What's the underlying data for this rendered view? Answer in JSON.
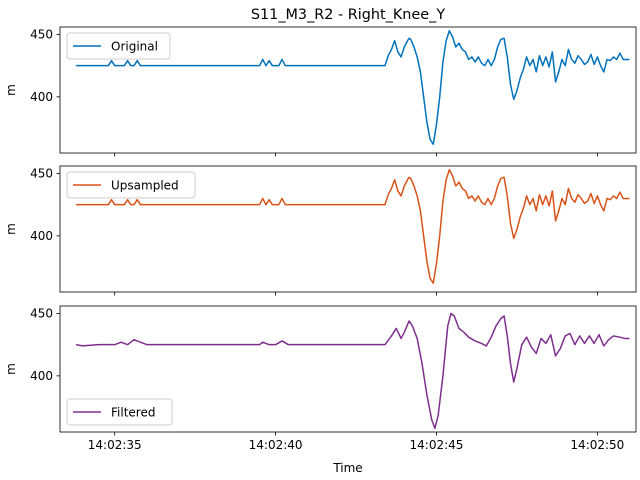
{
  "chart_data": {
    "type": "line",
    "title": "S11_M3_R2 - Right_Knee_Y",
    "xlabel": "Time",
    "x_ticks": [
      "14:02:35",
      "14:02:40",
      "14:02:45",
      "14:02:50"
    ],
    "x_range_seconds": [
      33.3,
      51.2
    ],
    "x_tick_seconds": [
      35,
      40,
      45,
      50
    ],
    "shared_x": true,
    "grid": false,
    "panels": [
      {
        "name": "Original",
        "color": "#0072BD",
        "ylabel": "m",
        "ylim": [
          355,
          456
        ],
        "y_ticks": [
          400,
          450
        ],
        "legend_position": "upper-left",
        "kind": "step",
        "values": [
          [
            33.8,
            425
          ],
          [
            34.8,
            425
          ],
          [
            34.9,
            429
          ],
          [
            35.0,
            425
          ],
          [
            35.3,
            425
          ],
          [
            35.4,
            429
          ],
          [
            35.5,
            425
          ],
          [
            35.6,
            425
          ],
          [
            35.7,
            429
          ],
          [
            35.8,
            425
          ],
          [
            39.5,
            425
          ],
          [
            39.6,
            430
          ],
          [
            39.7,
            425
          ],
          [
            39.8,
            429
          ],
          [
            39.9,
            425
          ],
          [
            40.1,
            425
          ],
          [
            40.2,
            430
          ],
          [
            40.3,
            425
          ],
          [
            43.4,
            425
          ],
          [
            43.5,
            433
          ],
          [
            43.6,
            438
          ],
          [
            43.7,
            445
          ],
          [
            43.8,
            436
          ],
          [
            43.9,
            432
          ],
          [
            44.0,
            440
          ],
          [
            44.1,
            445
          ],
          [
            44.15,
            447
          ],
          [
            44.2,
            446
          ],
          [
            44.3,
            440
          ],
          [
            44.4,
            432
          ],
          [
            44.5,
            420
          ],
          [
            44.6,
            400
          ],
          [
            44.7,
            380
          ],
          [
            44.8,
            366
          ],
          [
            44.9,
            362
          ],
          [
            45.0,
            378
          ],
          [
            45.1,
            400
          ],
          [
            45.2,
            428
          ],
          [
            45.3,
            445
          ],
          [
            45.4,
            453
          ],
          [
            45.5,
            448
          ],
          [
            45.6,
            440
          ],
          [
            45.7,
            443
          ],
          [
            45.8,
            438
          ],
          [
            45.9,
            436
          ],
          [
            46.0,
            430
          ],
          [
            46.1,
            432
          ],
          [
            46.2,
            428
          ],
          [
            46.3,
            432
          ],
          [
            46.4,
            427
          ],
          [
            46.5,
            425
          ],
          [
            46.6,
            430
          ],
          [
            46.7,
            425
          ],
          [
            46.8,
            430
          ],
          [
            46.9,
            440
          ],
          [
            47.0,
            446
          ],
          [
            47.1,
            447
          ],
          [
            47.2,
            432
          ],
          [
            47.3,
            410
          ],
          [
            47.4,
            398
          ],
          [
            47.5,
            405
          ],
          [
            47.6,
            415
          ],
          [
            47.7,
            422
          ],
          [
            47.8,
            432
          ],
          [
            47.9,
            425
          ],
          [
            48.0,
            430
          ],
          [
            48.1,
            420
          ],
          [
            48.2,
            433
          ],
          [
            48.3,
            425
          ],
          [
            48.4,
            432
          ],
          [
            48.5,
            424
          ],
          [
            48.6,
            436
          ],
          [
            48.7,
            412
          ],
          [
            48.8,
            420
          ],
          [
            48.9,
            430
          ],
          [
            49.0,
            425
          ],
          [
            49.1,
            438
          ],
          [
            49.2,
            430
          ],
          [
            49.3,
            427
          ],
          [
            49.4,
            433
          ],
          [
            49.5,
            430
          ],
          [
            49.6,
            426
          ],
          [
            49.7,
            428
          ],
          [
            49.8,
            434
          ],
          [
            49.9,
            426
          ],
          [
            50.0,
            432
          ],
          [
            50.1,
            425
          ],
          [
            50.2,
            420
          ],
          [
            50.3,
            430
          ],
          [
            50.4,
            429
          ],
          [
            50.5,
            432
          ],
          [
            50.6,
            430
          ],
          [
            50.7,
            435
          ],
          [
            50.8,
            430
          ],
          [
            51.0,
            430
          ]
        ]
      },
      {
        "name": "Upsampled",
        "color": "#D95319",
        "ylabel": "m",
        "ylim": [
          355,
          456
        ],
        "y_ticks": [
          400,
          450
        ],
        "legend_position": "upper-left",
        "kind": "step",
        "values": [
          [
            33.8,
            425
          ],
          [
            34.8,
            425
          ],
          [
            34.9,
            429
          ],
          [
            35.0,
            425
          ],
          [
            35.3,
            425
          ],
          [
            35.4,
            429
          ],
          [
            35.5,
            425
          ],
          [
            35.6,
            425
          ],
          [
            35.7,
            429
          ],
          [
            35.8,
            425
          ],
          [
            39.5,
            425
          ],
          [
            39.6,
            430
          ],
          [
            39.7,
            425
          ],
          [
            39.8,
            429
          ],
          [
            39.9,
            425
          ],
          [
            40.1,
            425
          ],
          [
            40.2,
            430
          ],
          [
            40.3,
            425
          ],
          [
            43.4,
            425
          ],
          [
            43.5,
            433
          ],
          [
            43.6,
            438
          ],
          [
            43.7,
            445
          ],
          [
            43.8,
            436
          ],
          [
            43.9,
            432
          ],
          [
            44.0,
            440
          ],
          [
            44.1,
            445
          ],
          [
            44.15,
            447
          ],
          [
            44.2,
            446
          ],
          [
            44.3,
            440
          ],
          [
            44.4,
            432
          ],
          [
            44.5,
            420
          ],
          [
            44.6,
            400
          ],
          [
            44.7,
            380
          ],
          [
            44.8,
            366
          ],
          [
            44.9,
            362
          ],
          [
            45.0,
            378
          ],
          [
            45.1,
            400
          ],
          [
            45.2,
            428
          ],
          [
            45.3,
            445
          ],
          [
            45.4,
            453
          ],
          [
            45.5,
            448
          ],
          [
            45.6,
            440
          ],
          [
            45.7,
            443
          ],
          [
            45.8,
            438
          ],
          [
            45.9,
            436
          ],
          [
            46.0,
            430
          ],
          [
            46.1,
            432
          ],
          [
            46.2,
            428
          ],
          [
            46.3,
            432
          ],
          [
            46.4,
            427
          ],
          [
            46.5,
            425
          ],
          [
            46.6,
            430
          ],
          [
            46.7,
            425
          ],
          [
            46.8,
            430
          ],
          [
            46.9,
            440
          ],
          [
            47.0,
            446
          ],
          [
            47.1,
            447
          ],
          [
            47.2,
            432
          ],
          [
            47.3,
            410
          ],
          [
            47.4,
            398
          ],
          [
            47.5,
            405
          ],
          [
            47.6,
            415
          ],
          [
            47.7,
            422
          ],
          [
            47.8,
            432
          ],
          [
            47.9,
            425
          ],
          [
            48.0,
            430
          ],
          [
            48.1,
            420
          ],
          [
            48.2,
            433
          ],
          [
            48.3,
            425
          ],
          [
            48.4,
            432
          ],
          [
            48.5,
            424
          ],
          [
            48.6,
            436
          ],
          [
            48.7,
            412
          ],
          [
            48.8,
            420
          ],
          [
            48.9,
            430
          ],
          [
            49.0,
            425
          ],
          [
            49.1,
            438
          ],
          [
            49.2,
            430
          ],
          [
            49.3,
            427
          ],
          [
            49.4,
            433
          ],
          [
            49.5,
            430
          ],
          [
            49.6,
            426
          ],
          [
            49.7,
            428
          ],
          [
            49.8,
            434
          ],
          [
            49.9,
            426
          ],
          [
            50.0,
            432
          ],
          [
            50.1,
            425
          ],
          [
            50.2,
            420
          ],
          [
            50.3,
            430
          ],
          [
            50.4,
            429
          ],
          [
            50.5,
            432
          ],
          [
            50.6,
            430
          ],
          [
            50.7,
            435
          ],
          [
            50.8,
            430
          ],
          [
            51.0,
            430
          ]
        ]
      },
      {
        "name": "Filtered",
        "color": "#7E2F8E",
        "ylabel": "m",
        "ylim": [
          355,
          456
        ],
        "y_ticks": [
          400,
          450
        ],
        "legend_position": "lower-left",
        "kind": "smooth",
        "values": [
          [
            33.8,
            425
          ],
          [
            34.0,
            424
          ],
          [
            34.5,
            425
          ],
          [
            35.0,
            425
          ],
          [
            35.2,
            427
          ],
          [
            35.4,
            425
          ],
          [
            35.6,
            429
          ],
          [
            35.8,
            427
          ],
          [
            36.0,
            425
          ],
          [
            36.3,
            425
          ],
          [
            37.0,
            425
          ],
          [
            38.0,
            425
          ],
          [
            39.0,
            425
          ],
          [
            39.5,
            425
          ],
          [
            39.6,
            427
          ],
          [
            39.8,
            425
          ],
          [
            40.0,
            425
          ],
          [
            40.2,
            428
          ],
          [
            40.4,
            425
          ],
          [
            41.0,
            425
          ],
          [
            42.0,
            425
          ],
          [
            43.0,
            425
          ],
          [
            43.4,
            425
          ],
          [
            43.6,
            432
          ],
          [
            43.75,
            438
          ],
          [
            43.9,
            430
          ],
          [
            44.0,
            435
          ],
          [
            44.15,
            444
          ],
          [
            44.25,
            440
          ],
          [
            44.4,
            430
          ],
          [
            44.55,
            410
          ],
          [
            44.7,
            385
          ],
          [
            44.85,
            365
          ],
          [
            44.95,
            358
          ],
          [
            45.05,
            368
          ],
          [
            45.2,
            400
          ],
          [
            45.35,
            440
          ],
          [
            45.45,
            450
          ],
          [
            45.55,
            448
          ],
          [
            45.7,
            438
          ],
          [
            45.85,
            435
          ],
          [
            46.0,
            431
          ],
          [
            46.2,
            428
          ],
          [
            46.4,
            426
          ],
          [
            46.55,
            424
          ],
          [
            46.7,
            431
          ],
          [
            46.85,
            440
          ],
          [
            47.0,
            446
          ],
          [
            47.1,
            448
          ],
          [
            47.2,
            432
          ],
          [
            47.3,
            410
          ],
          [
            47.4,
            395
          ],
          [
            47.5,
            406
          ],
          [
            47.65,
            425
          ],
          [
            47.8,
            431
          ],
          [
            47.95,
            423
          ],
          [
            48.1,
            418
          ],
          [
            48.25,
            430
          ],
          [
            48.4,
            426
          ],
          [
            48.55,
            433
          ],
          [
            48.7,
            416
          ],
          [
            48.85,
            422
          ],
          [
            49.0,
            432
          ],
          [
            49.15,
            434
          ],
          [
            49.3,
            425
          ],
          [
            49.45,
            432
          ],
          [
            49.6,
            426
          ],
          [
            49.75,
            432
          ],
          [
            49.9,
            426
          ],
          [
            50.05,
            433
          ],
          [
            50.2,
            424
          ],
          [
            50.35,
            429
          ],
          [
            50.5,
            432
          ],
          [
            50.7,
            431
          ],
          [
            50.85,
            430
          ],
          [
            51.0,
            430
          ]
        ]
      }
    ]
  }
}
